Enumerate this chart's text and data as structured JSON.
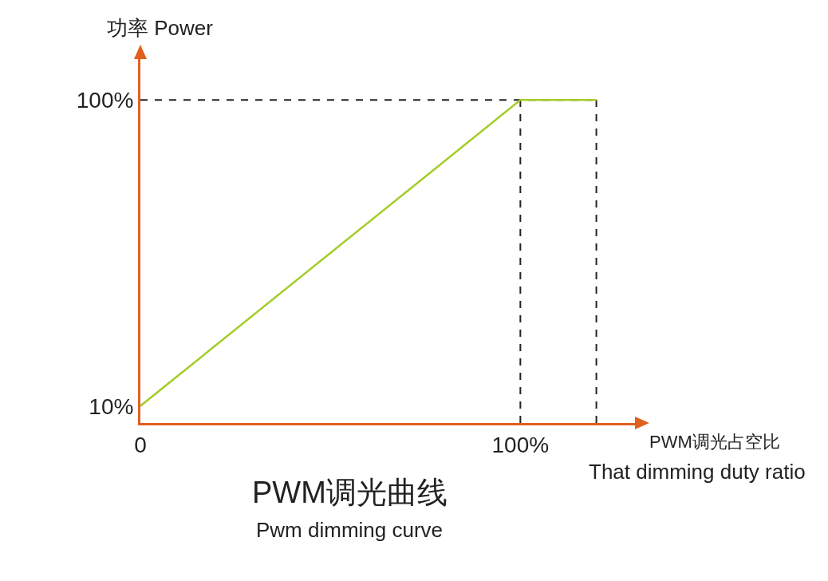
{
  "chart_data": {
    "type": "line",
    "title": "PWM调光曲线",
    "subtitle": "Pwm dimming curve",
    "ylabel": "功率 Power",
    "xlabel": "PWM调光占空比",
    "annotations": [
      "That dimming duty ratio"
    ],
    "x": [
      0,
      100,
      120
    ],
    "series": [
      {
        "color": "#a4cd2a",
        "values": [
          10,
          100,
          100
        ]
      }
    ],
    "xlim": [
      0,
      131
    ],
    "ylim": [
      5,
      113
    ],
    "xticks": [
      0,
      {
        "value": 100,
        "label": "100%"
      }
    ],
    "yticks": [
      {
        "value": 10,
        "label": "10%"
      },
      {
        "value": 100,
        "label": "100%"
      }
    ],
    "ref_lines": [
      {
        "axis": "y",
        "value": 100,
        "line_style": "dashed",
        "color": "#222222"
      },
      {
        "axis": "x",
        "value": 100,
        "line_style": "dashed",
        "color": "#222222"
      },
      {
        "axis": "x",
        "value": 120,
        "line_style": "dashed",
        "color": "#222222"
      }
    ],
    "grid": false,
    "marker": "none",
    "line_style": "solid"
  }
}
